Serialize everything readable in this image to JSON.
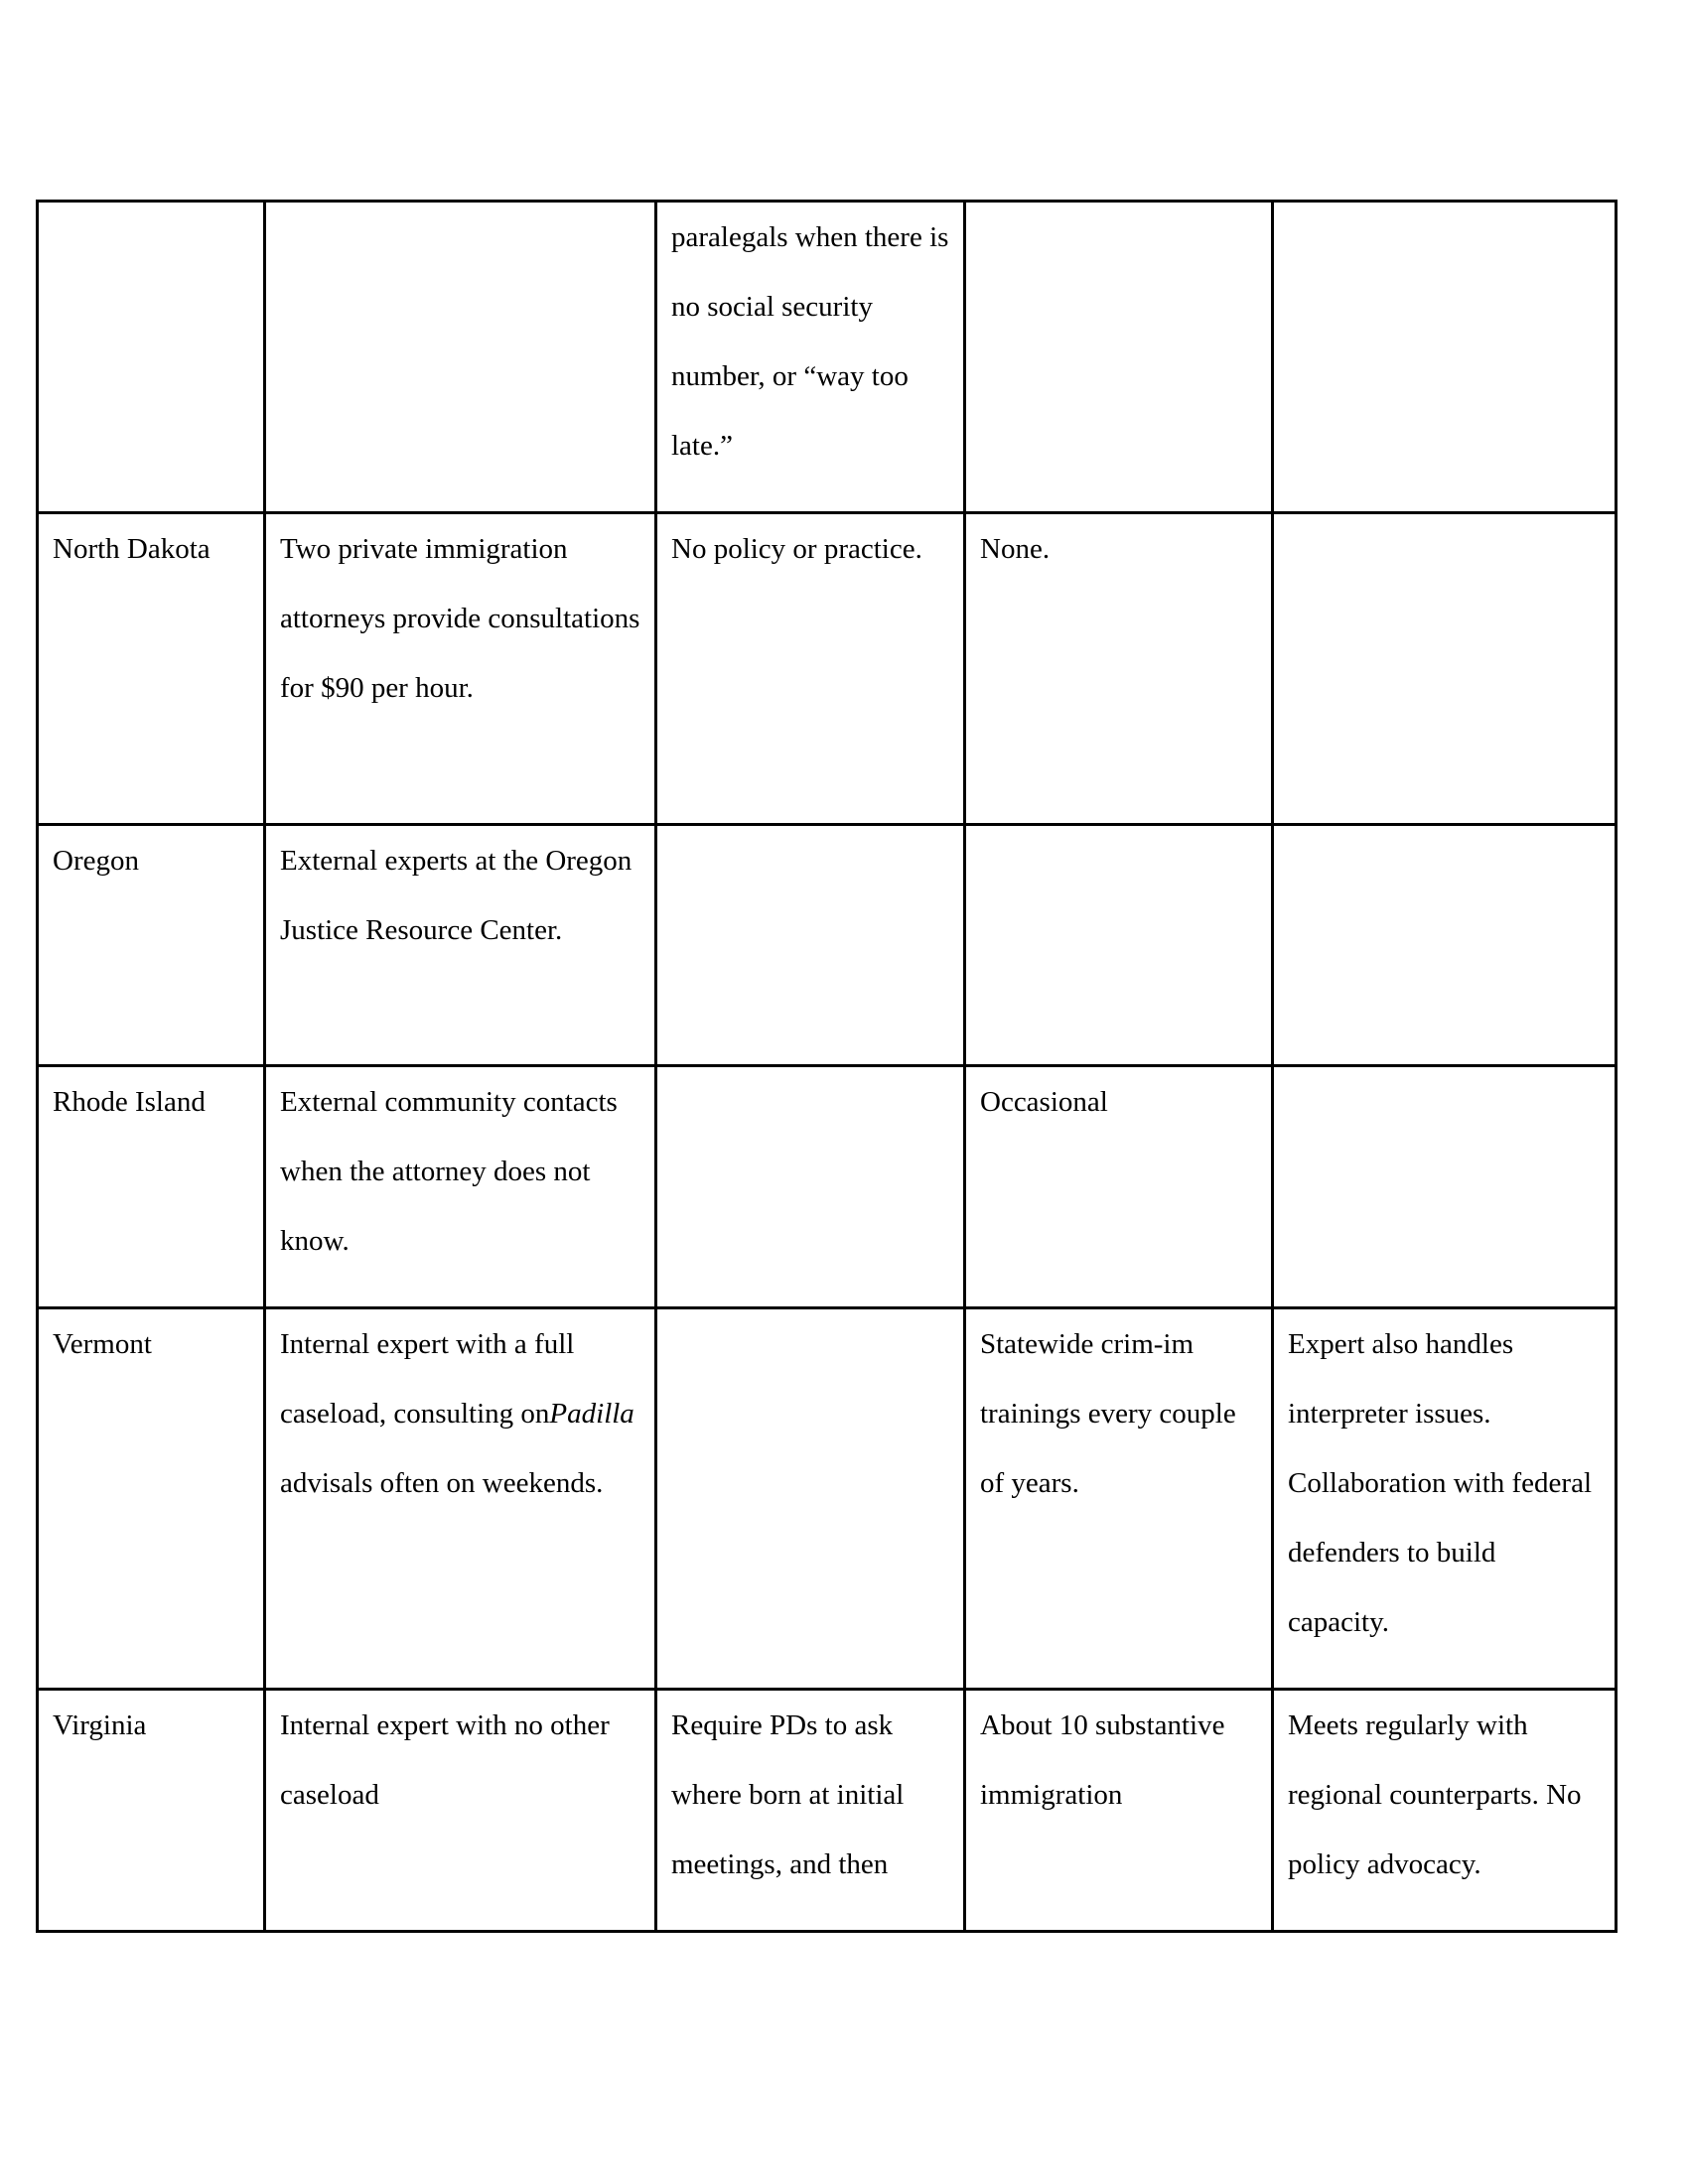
{
  "table": {
    "rows": [
      {
        "state": "",
        "expertise": "",
        "screening": "paralegals when there is no social security number, or “way too late.”",
        "training": "",
        "other": ""
      },
      {
        "state": "North Dakota",
        "expertise": "Two private immigration attorneys provide consultations for $90 per hour.",
        "screening": "No policy or practice.",
        "training": "None.",
        "other": ""
      },
      {
        "state": "Oregon",
        "expertise": "External experts at the Oregon Justice Resource Center.",
        "screening": "",
        "training": "",
        "other": ""
      },
      {
        "state": "Rhode Island",
        "expertise": "External community contacts when the attorney does not know.",
        "screening": "",
        "training": "Occasional",
        "other": ""
      },
      {
        "state": "Vermont",
        "expertise_pre": "Internal expert with a full caseload, consulting on",
        "expertise_italic": "Padilla",
        "expertise_post": " advisals often on weekends.",
        "screening": "",
        "training": "Statewide crim-im trainings every couple of years.",
        "other": "Expert also handles interpreter issues. Collaboration with federal defenders to build capacity."
      },
      {
        "state": "Virginia",
        "expertise": "Internal expert with no other caseload",
        "screening": "Require PDs to ask where born at initial meetings, and then",
        "training": "About 10 substantive immigration",
        "other": "Meets regularly with regional counterparts. No policy advocacy."
      }
    ]
  }
}
